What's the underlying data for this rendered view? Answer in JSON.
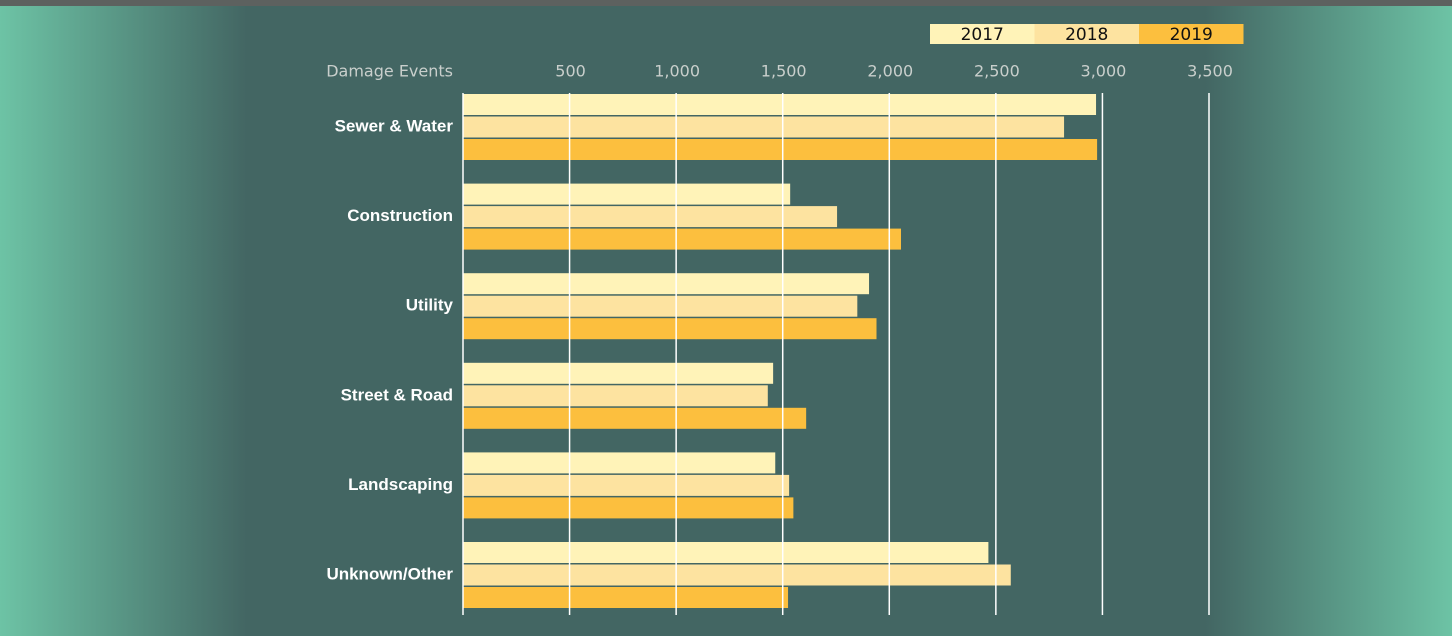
{
  "chart_data": {
    "type": "bar",
    "orientation": "horizontal",
    "xlabel": "Damage Events",
    "categories": [
      "Sewer & Water",
      "Construction",
      "Utility",
      "Street & Road",
      "Landscaping",
      "Unknown/Other"
    ],
    "series": [
      {
        "name": "2017",
        "color": "#fff3b8",
        "values": [
          2970,
          1535,
          1905,
          1455,
          1465,
          2465
        ]
      },
      {
        "name": "2018",
        "color": "#fde3a0",
        "values": [
          2820,
          1755,
          1850,
          1430,
          1530,
          2570
        ]
      },
      {
        "name": "2019",
        "color": "#fcbf3e",
        "values": [
          2975,
          2055,
          1940,
          1610,
          1550,
          1525
        ]
      }
    ],
    "xlim": [
      0,
      3500
    ],
    "xticks": [
      500,
      {
        "value": 1000,
        "label": "1,000"
      },
      {
        "value": 1500,
        "label": "1,500"
      },
      {
        "value": 2000,
        "label": "2,000"
      },
      {
        "value": 2500,
        "label": "2,500"
      },
      {
        "value": 3000,
        "label": "3,000"
      },
      {
        "value": 3500,
        "label": "3,500"
      }
    ],
    "grid": true,
    "legend": "top-right"
  }
}
